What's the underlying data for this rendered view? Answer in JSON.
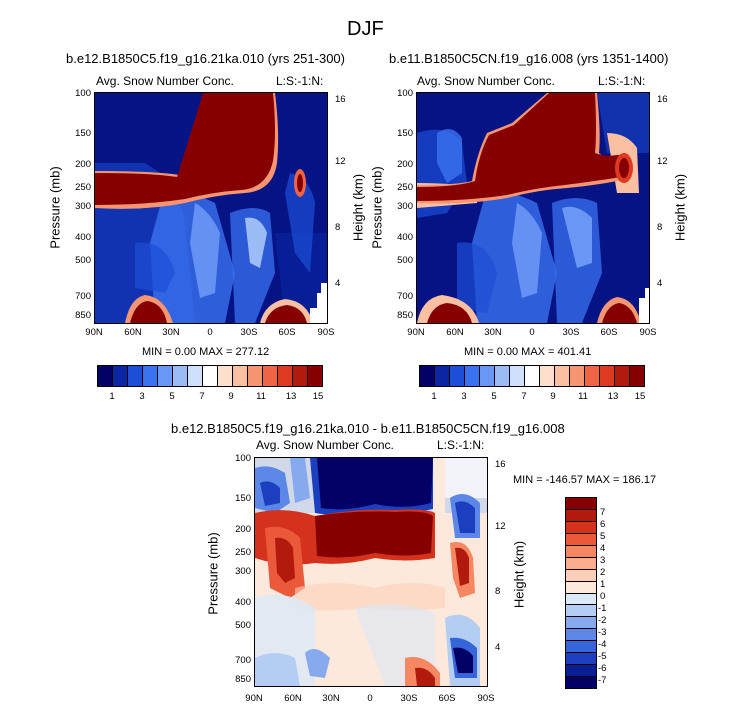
{
  "page": {
    "title": "DJF"
  },
  "colors": {
    "seq": [
      "#030066",
      "#0a26a4",
      "#1d4fd6",
      "#3a72f0",
      "#6a97f5",
      "#9cbcf7",
      "#cfe0fa",
      "#ffffff",
      "#fde0cc",
      "#fbbfa2",
      "#f59572",
      "#ee6545",
      "#de3a22",
      "#b21a0e",
      "#870000"
    ],
    "div": [
      "#870000",
      "#b21a0e",
      "#d4321c",
      "#ea5a3a",
      "#f58862",
      "#faad8d",
      "#fcd0b8",
      "#fde9dc",
      "#dbe8f7",
      "#b4cdf2",
      "#86aaed",
      "#5c87e6",
      "#3565d8",
      "#1b3fbf",
      "#0a1f96",
      "#030066"
    ]
  },
  "chart_data": [
    {
      "type": "heatmap",
      "name": "panel-1",
      "title": "b.e12.B1850C5.f19_g16.21ka.010 (yrs 251-300)",
      "left_label": "Avg. Snow Number Conc.",
      "right_label": "L:S:-1:N:",
      "ylabel": "Pressure (mb)",
      "ylabel_right": "Height (km)",
      "xticks": [
        "90N",
        "60N",
        "30N",
        "0",
        "30S",
        "60S",
        "90S"
      ],
      "yticks": [
        "100",
        "150",
        "200",
        "250",
        "300",
        "400",
        "500",
        "700",
        "850"
      ],
      "yticks_right": [
        "16",
        "12",
        "8",
        "4"
      ],
      "stats": "MIN = 0.00  MAX = 277.12",
      "colorbar_labels": [
        "1",
        "3",
        "5",
        "7",
        "9",
        "11",
        "13",
        "15"
      ]
    },
    {
      "type": "heatmap",
      "name": "panel-2",
      "title": "b.e11.B1850C5CN.f19_g16.008 (yrs 1351-1400)",
      "left_label": "Avg. Snow Number Conc.",
      "right_label": "L:S:-1:N:",
      "ylabel": "Pressure (mb)",
      "ylabel_right": "Height (km)",
      "xticks": [
        "90N",
        "60N",
        "30N",
        "0",
        "30S",
        "60S",
        "90S"
      ],
      "yticks": [
        "100",
        "150",
        "200",
        "250",
        "300",
        "400",
        "500",
        "700",
        "850"
      ],
      "yticks_right": [
        "16",
        "12",
        "8",
        "4"
      ],
      "stats": "MIN = 0.00  MAX = 401.41",
      "colorbar_labels": [
        "1",
        "3",
        "5",
        "7",
        "9",
        "11",
        "13",
        "15"
      ]
    },
    {
      "type": "heatmap",
      "name": "panel-diff",
      "title": "b.e12.B1850C5.f19_g16.21ka.010 - b.e11.B1850C5CN.f19_g16.008",
      "left_label": "Avg. Snow Number Conc.",
      "right_label": "L:S:-1:N:",
      "ylabel": "Pressure (mb)",
      "ylabel_right": "Height (km)",
      "xticks": [
        "90N",
        "60N",
        "30N",
        "0",
        "30S",
        "60S",
        "90S"
      ],
      "yticks": [
        "100",
        "150",
        "200",
        "250",
        "300",
        "400",
        "500",
        "700",
        "850"
      ],
      "yticks_right": [
        "16",
        "12",
        "8",
        "4"
      ],
      "stats": "MIN = -146.57  MAX = 186.17",
      "colorbar_labels": [
        "7",
        "6",
        "5",
        "4",
        "3",
        "2",
        "1",
        "0",
        "-1",
        "-2",
        "-3",
        "-4",
        "-5",
        "-6",
        "-7"
      ]
    }
  ]
}
